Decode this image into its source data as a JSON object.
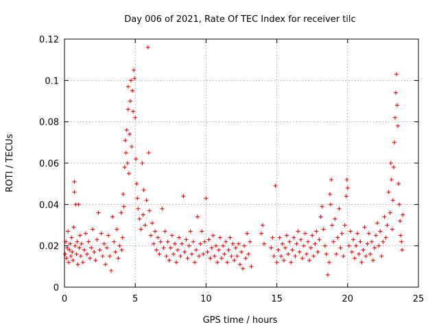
{
  "chart_data": {
    "type": "scatter",
    "title": "Day 006 of 2021, Rate Of TEC Index for receiver tilc",
    "xlabel": "GPS time / hours",
    "ylabel": "ROTI / TECUs",
    "xlim": [
      0,
      25
    ],
    "ylim": [
      0,
      0.12
    ],
    "xticks": [
      0,
      5,
      10,
      15,
      20,
      25
    ],
    "yticks": [
      0,
      0.02,
      0.04,
      0.06,
      0.08,
      0.1,
      0.12
    ],
    "xtick_labels": [
      "0",
      "5",
      "10",
      "15",
      "20",
      "25"
    ],
    "ytick_labels": [
      "0",
      "0.02",
      "0.04",
      "0.06",
      "0.08",
      "0.1",
      "0.12"
    ],
    "grid": true,
    "legend": "none",
    "marker": "+",
    "color": "#ff0000",
    "series": [
      {
        "values": [
          [
            0.05,
            0.016
          ],
          [
            0.1,
            0.022
          ],
          [
            0.15,
            0.014
          ],
          [
            0.2,
            0.019
          ],
          [
            0.25,
            0.027
          ],
          [
            0.3,
            0.012
          ],
          [
            0.35,
            0.018
          ],
          [
            0.4,
            0.021
          ],
          [
            0.45,
            0.015
          ],
          [
            0.5,
            0.024
          ],
          [
            0.55,
            0.017
          ],
          [
            0.6,
            0.013
          ],
          [
            0.65,
            0.029
          ],
          [
            0.7,
            0.051
          ],
          [
            0.7,
            0.046
          ],
          [
            0.75,
            0.02
          ],
          [
            0.8,
            0.04
          ],
          [
            0.85,
            0.016
          ],
          [
            0.9,
            0.022
          ],
          [
            0.95,
            0.011
          ],
          [
            1.0,
            0.04
          ],
          [
            1.05,
            0.019
          ],
          [
            1.1,
            0.025
          ],
          [
            1.15,
            0.015
          ],
          [
            1.2,
            0.021
          ],
          [
            1.3,
            0.012
          ],
          [
            1.4,
            0.018
          ],
          [
            1.5,
            0.026
          ],
          [
            1.6,
            0.016
          ],
          [
            1.7,
            0.022
          ],
          [
            1.8,
            0.014
          ],
          [
            1.9,
            0.019
          ],
          [
            2.0,
            0.028
          ],
          [
            2.1,
            0.017
          ],
          [
            2.2,
            0.013
          ],
          [
            2.3,
            0.023
          ],
          [
            2.4,
            0.036
          ],
          [
            2.5,
            0.018
          ],
          [
            2.6,
            0.026
          ],
          [
            2.7,
            0.015
          ],
          [
            2.8,
            0.021
          ],
          [
            2.9,
            0.011
          ],
          [
            3.0,
            0.019
          ],
          [
            3.1,
            0.025
          ],
          [
            3.2,
            0.015
          ],
          [
            3.3,
            0.008
          ],
          [
            3.4,
            0.034
          ],
          [
            3.5,
            0.022
          ],
          [
            3.6,
            0.017
          ],
          [
            3.7,
            0.028
          ],
          [
            3.8,
            0.014
          ],
          [
            3.9,
            0.02
          ],
          [
            4.0,
            0.036
          ],
          [
            4.05,
            0.018
          ],
          [
            4.1,
            0.024
          ],
          [
            4.15,
            0.045
          ],
          [
            4.2,
            0.039
          ],
          [
            4.25,
            0.058
          ],
          [
            4.3,
            0.071
          ],
          [
            4.35,
            0.065
          ],
          [
            4.4,
            0.076
          ],
          [
            4.45,
            0.06
          ],
          [
            4.5,
            0.086
          ],
          [
            4.5,
            0.097
          ],
          [
            4.55,
            0.055
          ],
          [
            4.6,
            0.074
          ],
          [
            4.65,
            0.09
          ],
          [
            4.7,
            0.1
          ],
          [
            4.75,
            0.068
          ],
          [
            4.8,
            0.095
          ],
          [
            4.85,
            0.085
          ],
          [
            4.9,
            0.105
          ],
          [
            4.95,
            0.101
          ],
          [
            5.0,
            0.082
          ],
          [
            5.05,
            0.062
          ],
          [
            5.1,
            0.05
          ],
          [
            5.15,
            0.043
          ],
          [
            5.2,
            0.038
          ],
          [
            5.3,
            0.033
          ],
          [
            5.4,
            0.028
          ],
          [
            5.5,
            0.06
          ],
          [
            5.55,
            0.035
          ],
          [
            5.6,
            0.047
          ],
          [
            5.7,
            0.03
          ],
          [
            5.8,
            0.042
          ],
          [
            5.9,
            0.116
          ],
          [
            5.95,
            0.065
          ],
          [
            6.0,
            0.037
          ],
          [
            6.1,
            0.025
          ],
          [
            6.2,
            0.031
          ],
          [
            6.3,
            0.021
          ],
          [
            6.4,
            0.027
          ],
          [
            6.5,
            0.018
          ],
          [
            6.6,
            0.024
          ],
          [
            6.7,
            0.016
          ],
          [
            6.8,
            0.022
          ],
          [
            6.9,
            0.038
          ],
          [
            7.0,
            0.019
          ],
          [
            7.1,
            0.027
          ],
          [
            7.2,
            0.015
          ],
          [
            7.3,
            0.022
          ],
          [
            7.4,
            0.013
          ],
          [
            7.5,
            0.019
          ],
          [
            7.6,
            0.025
          ],
          [
            7.7,
            0.016
          ],
          [
            7.8,
            0.021
          ],
          [
            7.9,
            0.012
          ],
          [
            8.0,
            0.018
          ],
          [
            8.1,
            0.024
          ],
          [
            8.2,
            0.015
          ],
          [
            8.3,
            0.021
          ],
          [
            8.4,
            0.044
          ],
          [
            8.5,
            0.017
          ],
          [
            8.6,
            0.023
          ],
          [
            8.7,
            0.014
          ],
          [
            8.8,
            0.02
          ],
          [
            8.9,
            0.027
          ],
          [
            9.0,
            0.016
          ],
          [
            9.1,
            0.022
          ],
          [
            9.2,
            0.012
          ],
          [
            9.3,
            0.018
          ],
          [
            9.4,
            0.034
          ],
          [
            9.5,
            0.015
          ],
          [
            9.6,
            0.021
          ],
          [
            9.7,
            0.027
          ],
          [
            9.8,
            0.016
          ],
          [
            9.9,
            0.022
          ],
          [
            10.0,
            0.043
          ],
          [
            10.1,
            0.017
          ],
          [
            10.2,
            0.023
          ],
          [
            10.3,
            0.014
          ],
          [
            10.4,
            0.019
          ],
          [
            10.5,
            0.025
          ],
          [
            10.6,
            0.015
          ],
          [
            10.7,
            0.02
          ],
          [
            10.8,
            0.012
          ],
          [
            10.9,
            0.018
          ],
          [
            11.0,
            0.024
          ],
          [
            11.1,
            0.014
          ],
          [
            11.2,
            0.02
          ],
          [
            11.3,
            0.016
          ],
          [
            11.4,
            0.022
          ],
          [
            11.5,
            0.012
          ],
          [
            11.6,
            0.018
          ],
          [
            11.7,
            0.024
          ],
          [
            11.8,
            0.015
          ],
          [
            11.9,
            0.021
          ],
          [
            12.0,
            0.013
          ],
          [
            12.1,
            0.019
          ],
          [
            12.2,
            0.015
          ],
          [
            12.3,
            0.021
          ],
          [
            12.4,
            0.011
          ],
          [
            12.5,
            0.017
          ],
          [
            12.6,
            0.009
          ],
          [
            12.7,
            0.02
          ],
          [
            12.8,
            0.014
          ],
          [
            12.9,
            0.026
          ],
          [
            13.0,
            0.016
          ],
          [
            13.1,
            0.022
          ],
          [
            13.2,
            0.01
          ],
          [
            13.9,
            0.026
          ],
          [
            14.0,
            0.03
          ],
          [
            14.1,
            0.021
          ],
          [
            14.6,
            0.019
          ],
          [
            14.7,
            0.024
          ],
          [
            14.8,
            0.015
          ],
          [
            14.9,
            0.049
          ],
          [
            15.0,
            0.012
          ],
          [
            15.1,
            0.018
          ],
          [
            15.2,
            0.024
          ],
          [
            15.3,
            0.015
          ],
          [
            15.4,
            0.021
          ],
          [
            15.5,
            0.013
          ],
          [
            15.6,
            0.019
          ],
          [
            15.7,
            0.025
          ],
          [
            15.8,
            0.016
          ],
          [
            15.9,
            0.022
          ],
          [
            16.0,
            0.012
          ],
          [
            16.1,
            0.018
          ],
          [
            16.2,
            0.024
          ],
          [
            16.3,
            0.015
          ],
          [
            16.4,
            0.021
          ],
          [
            16.5,
            0.027
          ],
          [
            16.6,
            0.017
          ],
          [
            16.7,
            0.023
          ],
          [
            16.8,
            0.014
          ],
          [
            16.9,
            0.02
          ],
          [
            17.0,
            0.026
          ],
          [
            17.1,
            0.016
          ],
          [
            17.2,
            0.022
          ],
          [
            17.3,
            0.013
          ],
          [
            17.4,
            0.019
          ],
          [
            17.5,
            0.025
          ],
          [
            17.6,
            0.015
          ],
          [
            17.7,
            0.021
          ],
          [
            17.8,
            0.027
          ],
          [
            17.9,
            0.017
          ],
          [
            18.0,
            0.023
          ],
          [
            18.1,
            0.034
          ],
          [
            18.2,
            0.039
          ],
          [
            18.3,
            0.028
          ],
          [
            18.4,
            0.02
          ],
          [
            18.5,
            0.016
          ],
          [
            18.6,
            0.006
          ],
          [
            18.7,
            0.012
          ],
          [
            18.75,
            0.045
          ],
          [
            18.8,
            0.04
          ],
          [
            18.85,
            0.052
          ],
          [
            18.9,
            0.03
          ],
          [
            19.0,
            0.022
          ],
          [
            19.1,
            0.033
          ],
          [
            19.2,
            0.016
          ],
          [
            19.3,
            0.024
          ],
          [
            19.4,
            0.038
          ],
          [
            19.5,
            0.019
          ],
          [
            19.6,
            0.026
          ],
          [
            19.7,
            0.015
          ],
          [
            19.8,
            0.03
          ],
          [
            19.9,
            0.044
          ],
          [
            19.95,
            0.052
          ],
          [
            20.0,
            0.048
          ],
          [
            20.1,
            0.02
          ],
          [
            20.2,
            0.027
          ],
          [
            20.3,
            0.017
          ],
          [
            20.4,
            0.023
          ],
          [
            20.5,
            0.014
          ],
          [
            20.6,
            0.02
          ],
          [
            20.7,
            0.026
          ],
          [
            20.8,
            0.016
          ],
          [
            20.9,
            0.022
          ],
          [
            21.0,
            0.012
          ],
          [
            21.1,
            0.018
          ],
          [
            21.2,
            0.029
          ],
          [
            21.3,
            0.015
          ],
          [
            21.4,
            0.021
          ],
          [
            21.5,
            0.026
          ],
          [
            21.6,
            0.016
          ],
          [
            21.7,
            0.022
          ],
          [
            21.8,
            0.013
          ],
          [
            21.9,
            0.019
          ],
          [
            22.0,
            0.025
          ],
          [
            22.1,
            0.031
          ],
          [
            22.2,
            0.02
          ],
          [
            22.3,
            0.027
          ],
          [
            22.4,
            0.015
          ],
          [
            22.5,
            0.022
          ],
          [
            22.6,
            0.034
          ],
          [
            22.7,
            0.024
          ],
          [
            22.8,
            0.03
          ],
          [
            22.9,
            0.046
          ],
          [
            23.0,
            0.036
          ],
          [
            23.05,
            0.06
          ],
          [
            23.1,
            0.052
          ],
          [
            23.15,
            0.028
          ],
          [
            23.2,
            0.042
          ],
          [
            23.25,
            0.058
          ],
          [
            23.3,
            0.07
          ],
          [
            23.35,
            0.082
          ],
          [
            23.4,
            0.094
          ],
          [
            23.45,
            0.103
          ],
          [
            23.5,
            0.088
          ],
          [
            23.55,
            0.078
          ],
          [
            23.6,
            0.05
          ],
          [
            23.65,
            0.04
          ],
          [
            23.7,
            0.032
          ],
          [
            23.75,
            0.025
          ],
          [
            23.8,
            0.022
          ],
          [
            23.85,
            0.018
          ],
          [
            23.9,
            0.035
          ]
        ]
      }
    ]
  }
}
